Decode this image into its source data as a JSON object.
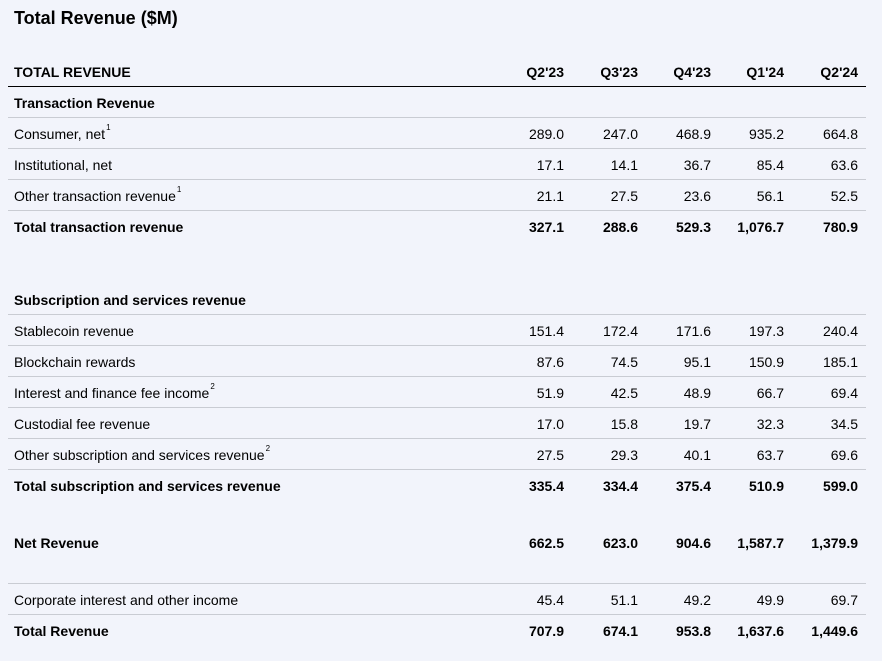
{
  "title": "Total Revenue ($M)",
  "header": {
    "label": "TOTAL REVENUE",
    "columns": [
      "Q2'23",
      "Q3'23",
      "Q4'23",
      "Q1'24",
      "Q2'24"
    ]
  },
  "transaction": {
    "section_label": "Transaction Revenue",
    "rows": [
      {
        "label": "Consumer, net",
        "sup": "1",
        "values": [
          "289.0",
          "247.0",
          "468.9",
          "935.2",
          "664.8"
        ]
      },
      {
        "label": "Institutional, net",
        "sup": "",
        "values": [
          "17.1",
          "14.1",
          "36.7",
          "85.4",
          "63.6"
        ]
      },
      {
        "label": "Other transaction revenue",
        "sup": "1",
        "values": [
          "21.1",
          "27.5",
          "23.6",
          "56.1",
          "52.5"
        ]
      }
    ],
    "total": {
      "label": "Total transaction revenue",
      "values": [
        "327.1",
        "288.6",
        "529.3",
        "1,076.7",
        "780.9"
      ]
    }
  },
  "subscription": {
    "section_label": "Subscription and services revenue",
    "rows": [
      {
        "label": "Stablecoin revenue",
        "sup": "",
        "values": [
          "151.4",
          "172.4",
          "171.6",
          "197.3",
          "240.4"
        ]
      },
      {
        "label": "Blockchain rewards",
        "sup": "",
        "values": [
          "87.6",
          "74.5",
          "95.1",
          "150.9",
          "185.1"
        ]
      },
      {
        "label": "Interest and finance fee income",
        "sup": "2",
        "values": [
          "51.9",
          "42.5",
          "48.9",
          "66.7",
          "69.4"
        ]
      },
      {
        "label": "Custodial fee revenue",
        "sup": "",
        "values": [
          "17.0",
          "15.8",
          "19.7",
          "32.3",
          "34.5"
        ]
      },
      {
        "label": "Other subscription and services revenue",
        "sup": "2",
        "values": [
          "27.5",
          "29.3",
          "40.1",
          "63.7",
          "69.6"
        ]
      }
    ],
    "total": {
      "label": "Total subscription and services revenue",
      "values": [
        "335.4",
        "334.4",
        "375.4",
        "510.9",
        "599.0"
      ]
    }
  },
  "net_revenue": {
    "label": "Net Revenue",
    "values": [
      "662.5",
      "623.0",
      "904.6",
      "1,587.7",
      "1,379.9"
    ]
  },
  "corporate": {
    "label": "Corporate interest and other income",
    "values": [
      "45.4",
      "51.1",
      "49.2",
      "49.9",
      "69.7"
    ]
  },
  "total_revenue": {
    "label": "Total Revenue",
    "values": [
      "707.9",
      "674.1",
      "953.8",
      "1,637.6",
      "1,449.6"
    ]
  }
}
